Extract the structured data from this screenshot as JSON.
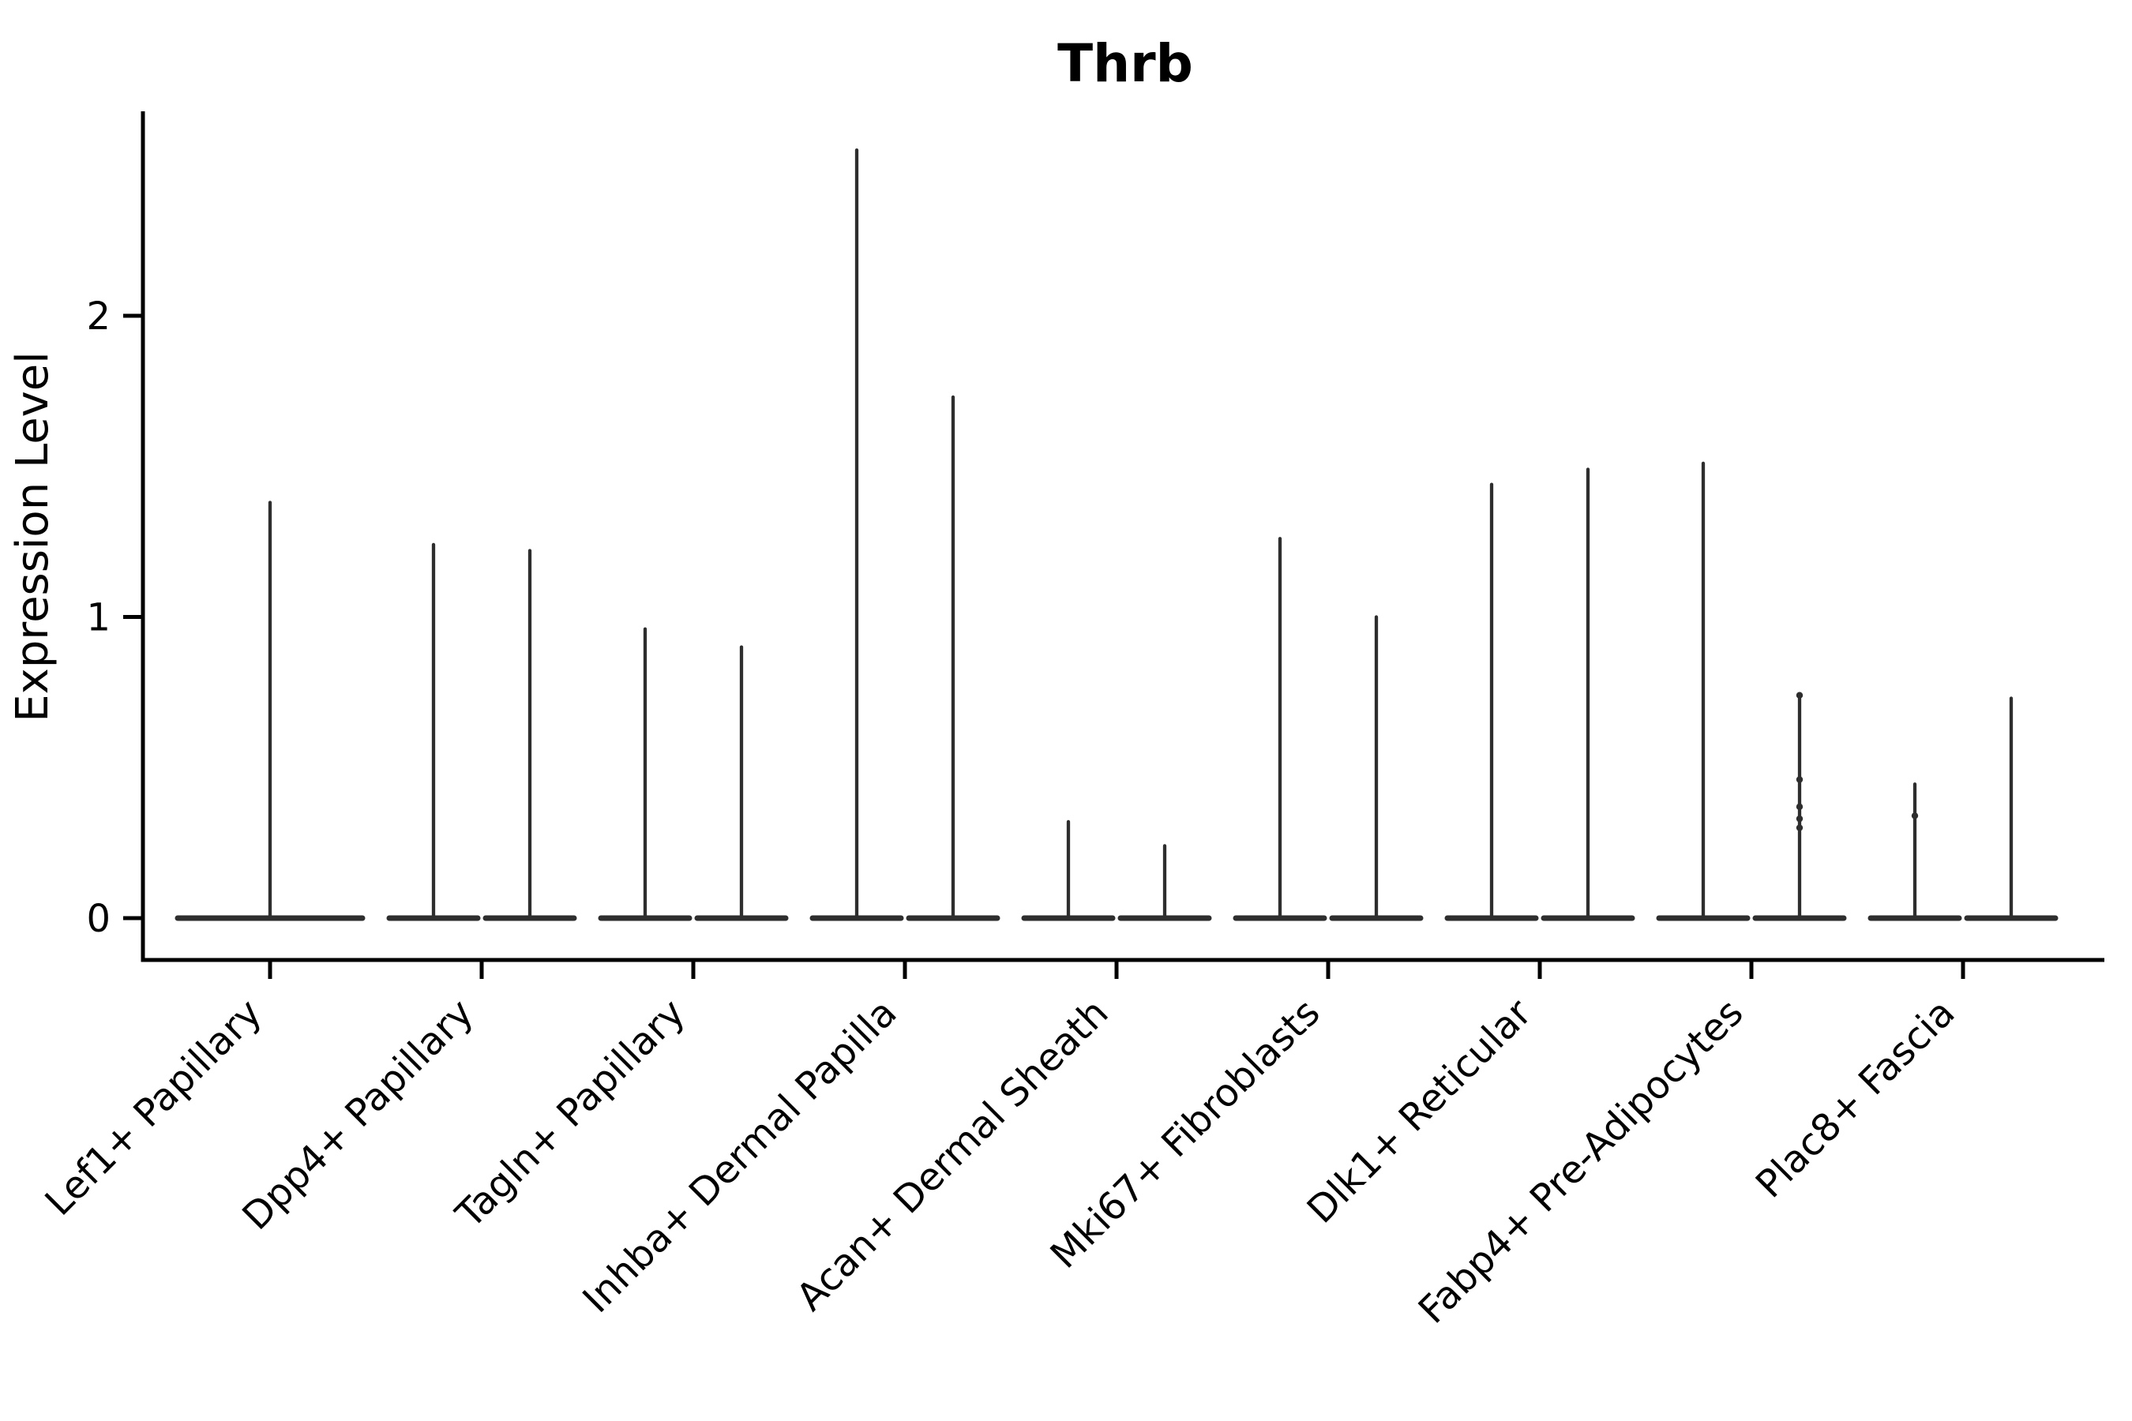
{
  "figure": {
    "background": "#ffffff",
    "axis_color": "#000000",
    "violin_color": "#2e2e2e"
  },
  "chart_data": {
    "type": "violin",
    "title": "Thrb",
    "xlabel": "",
    "ylabel": "Expression Level",
    "yticks": [
      0,
      1,
      2
    ],
    "ylim": [
      -0.14,
      2.68
    ],
    "grid": false,
    "legend": "none",
    "x_tick_rotation_deg": 45,
    "description": "Single-cell expression violin plot; each category shows 1-2 near-zero-width violins: a wide flat base at expression 0 and a thin spike reaching the maximum expression value.",
    "categories": [
      "Lef1+ Papillary",
      "Dpp4+ Papillary",
      "Tagln+ Papillary",
      "Inhba+ Dermal Papilla",
      "Acan+ Dermal Sheath",
      "Mki67+ Fibroblasts",
      "Dlk1+ Reticular",
      "Fabp4+ Pre-Adipocytes",
      "Plac8+ Fascia"
    ],
    "series": [
      {
        "category": "Lef1+ Papillary",
        "violins": [
          {
            "base": 0,
            "max": 1.38,
            "points": []
          }
        ]
      },
      {
        "category": "Dpp4+ Papillary",
        "violins": [
          {
            "base": 0,
            "max": 1.24,
            "points": []
          },
          {
            "base": 0,
            "max": 1.22,
            "points": []
          }
        ]
      },
      {
        "category": "Tagln+ Papillary",
        "violins": [
          {
            "base": 0,
            "max": 0.96,
            "points": []
          },
          {
            "base": 0,
            "max": 0.9,
            "points": []
          }
        ]
      },
      {
        "category": "Inhba+ Dermal Papilla",
        "violins": [
          {
            "base": 0,
            "max": 2.55,
            "points": []
          },
          {
            "base": 0,
            "max": 1.73,
            "points": []
          }
        ]
      },
      {
        "category": "Acan+ Dermal Sheath",
        "violins": [
          {
            "base": 0,
            "max": 0.32,
            "points": []
          },
          {
            "base": 0,
            "max": 0.24,
            "points": []
          }
        ]
      },
      {
        "category": "Mki67+ Fibroblasts",
        "violins": [
          {
            "base": 0,
            "max": 1.26,
            "points": []
          },
          {
            "base": 0,
            "max": 1.0,
            "points": []
          }
        ]
      },
      {
        "category": "Dlk1+ Reticular",
        "violins": [
          {
            "base": 0,
            "max": 1.44,
            "points": []
          },
          {
            "base": 0,
            "max": 1.49,
            "points": []
          }
        ]
      },
      {
        "category": "Fabp4+ Pre-Adipocytes",
        "violins": [
          {
            "base": 0,
            "max": 1.51,
            "points": []
          },
          {
            "base": 0,
            "max": 0.74,
            "points": [
              0.74,
              0.46,
              0.37,
              0.33,
              0.3
            ]
          }
        ]
      },
      {
        "category": "Plac8+ Fascia",
        "violins": [
          {
            "base": 0,
            "max": 0.445,
            "points": [
              0.34
            ]
          },
          {
            "base": 0,
            "max": 0.73,
            "points": []
          }
        ]
      }
    ]
  }
}
